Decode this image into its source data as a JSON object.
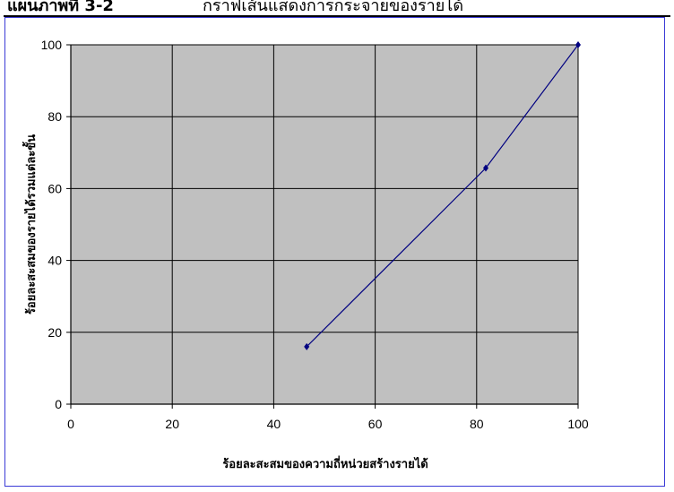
{
  "header": {
    "label": "แผนภาพที่ 3-2",
    "caption": "กราฟเส้นแสดงการกระจายของรายได้"
  },
  "chart_data": {
    "type": "line",
    "title": "",
    "xlabel": "ร้อยละสะสมของความถี่หน่วยสร้างรายได้",
    "ylabel": "ร้อยละสะสมของรายได้รวมแต่ละขั้น",
    "xlim": [
      0,
      100
    ],
    "ylim": [
      0,
      100
    ],
    "xticks": [
      0,
      20,
      40,
      60,
      80,
      100
    ],
    "yticks": [
      0,
      20,
      40,
      60,
      80,
      100
    ],
    "grid": true,
    "plot_background": "#c0c0c0",
    "series": [
      {
        "color": "#000080",
        "marker": "diamond",
        "points": [
          {
            "x": 46.5,
            "y": 16
          },
          {
            "x": 81.8,
            "y": 65.7
          },
          {
            "x": 100,
            "y": 100
          }
        ]
      }
    ]
  }
}
